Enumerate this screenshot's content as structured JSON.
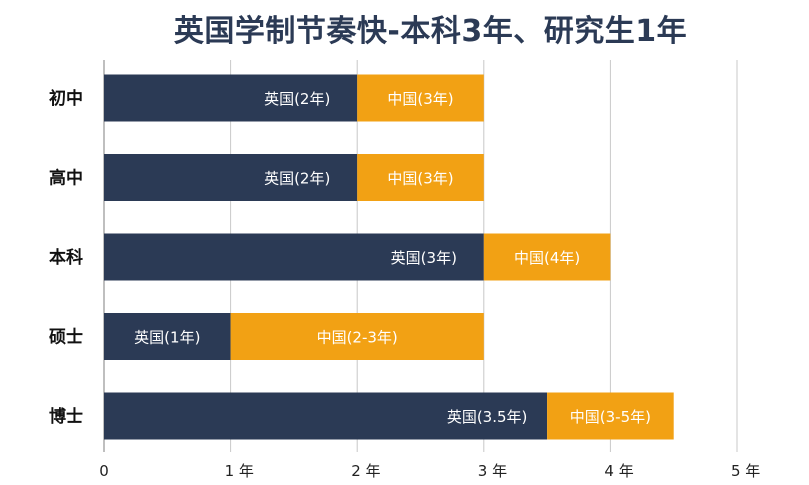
{
  "chart_data": {
    "type": "bar",
    "orientation": "horizontal",
    "stacked": true,
    "title": "英国学制节奏快-本科3年、研究生1年",
    "categories": [
      "初中",
      "高中",
      "本科",
      "硕士",
      "博士"
    ],
    "series": [
      {
        "name": "英国",
        "values": [
          2,
          2,
          3,
          1,
          3.5
        ],
        "color": "#2b3a55",
        "labels": [
          "英国(2年)",
          "英国(2年)",
          "英国(3年)",
          "英国(1年)",
          "英国(3.5年)"
        ]
      },
      {
        "name": "中国",
        "values": [
          1,
          1,
          1,
          2,
          1
        ],
        "color": "#f2a114",
        "labels": [
          "中国(3年)",
          "中国(3年)",
          "中国(4年)",
          "中国(2-3年)",
          "中国(3-5年)"
        ]
      }
    ],
    "xlim": [
      0,
      5
    ],
    "xticks": [
      0,
      1,
      2,
      3,
      4,
      5
    ],
    "xtick_labels": [
      "0",
      "1 年",
      "2 年",
      "3 年",
      "4 年",
      "5 年"
    ],
    "grid": "vertical",
    "legend": "none"
  }
}
